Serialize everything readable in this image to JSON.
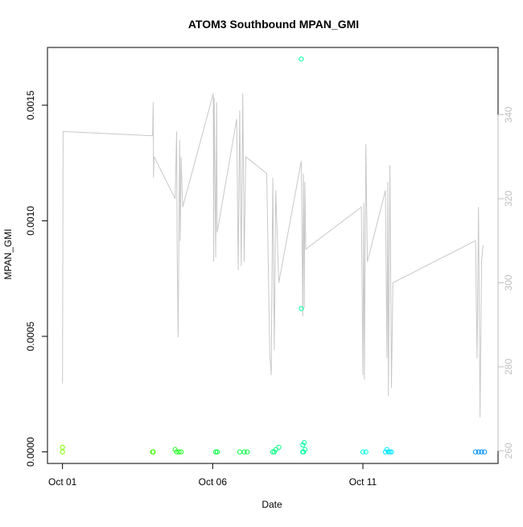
{
  "chart_data": {
    "type": "scatter",
    "title": "ATOM3 Southbound MPAN_GMI",
    "xlabel": "Date",
    "ylabel": "MPAN_GMI",
    "x_ticks": [
      "Oct 01",
      "Oct 06",
      "Oct 11"
    ],
    "x_tick_days": [
      1,
      6,
      11
    ],
    "xlim_days": [
      0.5,
      15.5
    ],
    "y_ticks": [
      "0.0000",
      "0.0005",
      "0.0010",
      "0.0015"
    ],
    "ylim": [
      -5e-05,
      0.00175
    ],
    "y2_ticks": [
      "260",
      "280",
      "300",
      "320",
      "340"
    ],
    "y2lim": [
      257,
      356
    ],
    "grid": false,
    "axis_color": "#000000",
    "secondary_color": "#bfbfbf",
    "line_color": "#c8c8c8",
    "series": [
      {
        "values": [
          [
            1.0,
            2e-05,
            "#7fff00"
          ],
          [
            1.0,
            0.0,
            "#7fff00"
          ],
          [
            4.0,
            0.0,
            "#3fff00"
          ],
          [
            4.02,
            0.0,
            "#3fff00"
          ],
          [
            4.75,
            1e-05,
            "#20ff20"
          ],
          [
            4.8,
            0.0,
            "#20ff20"
          ],
          [
            4.88,
            0.0,
            "#20ff20"
          ],
          [
            4.95,
            0.0,
            "#20ff20"
          ],
          [
            6.1,
            0.0,
            "#00ff40"
          ],
          [
            6.15,
            0.0,
            "#00ff40"
          ],
          [
            6.9,
            0.0,
            "#00ff40"
          ],
          [
            7.05,
            0.0,
            "#00ff40"
          ],
          [
            7.15,
            0.0,
            "#00ff40"
          ],
          [
            8.0,
            0.0,
            "#00ff80"
          ],
          [
            8.05,
            0.0,
            "#00ff80"
          ],
          [
            8.1,
            1e-05,
            "#00ff80"
          ],
          [
            8.2,
            2e-05,
            "#00ff80"
          ],
          [
            8.95,
            0.0017,
            "#00ffa0"
          ],
          [
            8.95,
            0.00062,
            "#00ffa0"
          ],
          [
            9.0,
            0.0,
            "#00ffa0"
          ],
          [
            9.0,
            3e-05,
            "#00ffa0"
          ],
          [
            9.05,
            4e-05,
            "#00ffa0"
          ],
          [
            9.07,
            1e-05,
            "#00ffa0"
          ],
          [
            9.02,
            0.0,
            "#00ffa0"
          ],
          [
            11.0,
            0.0,
            "#00ffe0"
          ],
          [
            11.1,
            0.0,
            "#00ffe0"
          ],
          [
            11.75,
            0.0,
            "#00e8ff"
          ],
          [
            11.8,
            1e-05,
            "#00e8ff"
          ],
          [
            11.85,
            0.0,
            "#00e8ff"
          ],
          [
            11.9,
            0.0,
            "#00e8ff"
          ],
          [
            11.95,
            0.0,
            "#00e8ff"
          ],
          [
            14.75,
            0.0,
            "#0090ff"
          ],
          [
            14.85,
            0.0,
            "#0090ff"
          ],
          [
            14.95,
            0.0,
            "#0090ff"
          ],
          [
            15.05,
            0.0,
            "#0090ff"
          ]
        ]
      },
      {
        "axis": "right",
        "values": [
          [
            1.0,
            276
          ],
          [
            1.02,
            336
          ],
          [
            4.0,
            335
          ],
          [
            4.02,
            343
          ],
          [
            4.03,
            325
          ],
          [
            4.05,
            330
          ],
          [
            4.75,
            320
          ],
          [
            4.8,
            336
          ],
          [
            4.82,
            305
          ],
          [
            4.85,
            287
          ],
          [
            4.9,
            334
          ],
          [
            4.92,
            310
          ],
          [
            4.95,
            330
          ],
          [
            5.0,
            318
          ],
          [
            6.02,
            345
          ],
          [
            6.03,
            305
          ],
          [
            6.05,
            344
          ],
          [
            6.1,
            306
          ],
          [
            6.13,
            343
          ],
          [
            6.15,
            312
          ],
          [
            6.8,
            339
          ],
          [
            6.85,
            303
          ],
          [
            6.9,
            341
          ],
          [
            6.95,
            304
          ],
          [
            7.0,
            345
          ],
          [
            7.05,
            305
          ],
          [
            7.1,
            330
          ],
          [
            7.8,
            326
          ],
          [
            7.9,
            283
          ],
          [
            7.95,
            278
          ],
          [
            8.0,
            325
          ],
          [
            8.05,
            284
          ],
          [
            8.1,
            322
          ],
          [
            8.2,
            300
          ],
          [
            8.95,
            329
          ],
          [
            9.0,
            292
          ],
          [
            9.02,
            326
          ],
          [
            9.05,
            294
          ],
          [
            9.07,
            324
          ],
          [
            9.1,
            308
          ],
          [
            10.95,
            318
          ],
          [
            11.0,
            278
          ],
          [
            11.03,
            319
          ],
          [
            11.05,
            277
          ],
          [
            11.1,
            333
          ],
          [
            11.15,
            305
          ],
          [
            11.75,
            322
          ],
          [
            11.8,
            282
          ],
          [
            11.83,
            324
          ],
          [
            11.85,
            273
          ],
          [
            11.9,
            328
          ],
          [
            11.95,
            275
          ],
          [
            12.0,
            300
          ],
          [
            14.75,
            310
          ],
          [
            14.8,
            282
          ],
          [
            14.85,
            318
          ],
          [
            14.9,
            268
          ],
          [
            14.95,
            305
          ],
          [
            15.0,
            309
          ]
        ]
      }
    ]
  }
}
